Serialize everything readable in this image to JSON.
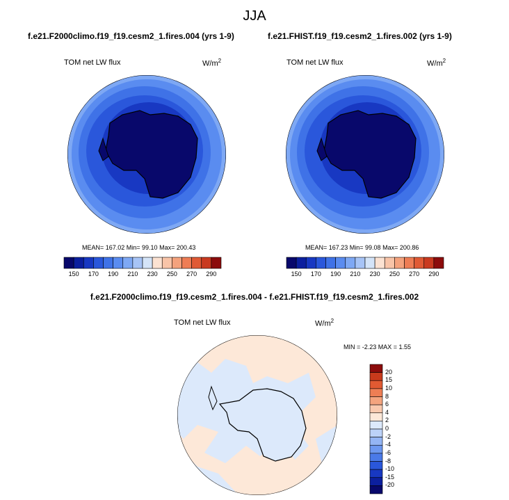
{
  "chart_data": [
    {
      "type": "heatmap",
      "title": "JJA",
      "subtitle": "f.e21.F2000climo.f19_f19.cesm2_1.fires.004 (yrs 1-9)",
      "variable_label": "TOM net LW flux",
      "units_label": "W/m",
      "units_superscript": "2",
      "stats_text": "MEAN= 167.02 Min= 99.10 Max= 200.43",
      "stats": {
        "mean": 167.02,
        "min": 99.1,
        "max": 200.43
      },
      "colorbar_levels": [
        140,
        150,
        160,
        170,
        180,
        190,
        200,
        210,
        220,
        230,
        240,
        250,
        260,
        270,
        280,
        290,
        300
      ],
      "colorbar_tick_labels": [
        "150",
        "170",
        "190",
        "210",
        "230",
        "250",
        "270",
        "290"
      ],
      "colorbar_colors": [
        "#08086b",
        "#0c1f9e",
        "#1838c2",
        "#2a57db",
        "#3f72e7",
        "#5a8cf0",
        "#7ea8f4",
        "#a7c4f6",
        "#d4e4f8",
        "#fbe2d2",
        "#f8c4a8",
        "#f4a27d",
        "#ee7d55",
        "#e05a35",
        "#c93a20",
        "#8c0c0c"
      ]
    },
    {
      "type": "heatmap",
      "subtitle": "f.e21.FHIST.f19_f19.cesm2_1.fires.002 (yrs 1-9)",
      "variable_label": "TOM net LW flux",
      "units_label": "W/m",
      "units_superscript": "2",
      "stats_text": "MEAN= 167.23 Min= 99.08 Max= 200.86",
      "stats": {
        "mean": 167.23,
        "min": 99.08,
        "max": 200.86
      },
      "colorbar_tick_labels": [
        "150",
        "170",
        "190",
        "210",
        "230",
        "250",
        "270",
        "290"
      ]
    },
    {
      "type": "heatmap",
      "subtitle": "f.e21.F2000climo.f19_f19.cesm2_1.fires.004 - f.e21.FHIST.f19_f19.cesm2_1.fires.002",
      "variable_label": "TOM net LW flux",
      "units_label": "W/m",
      "units_superscript": "2",
      "stats_text": "MIN =  -2.23 MAX =   1.55",
      "stats": {
        "min": -2.23,
        "max": 1.55
      },
      "colorbar_tick_labels": [
        "20",
        "15",
        "10",
        "8",
        "6",
        "4",
        "2",
        "0",
        "-2",
        "-4",
        "-6",
        "-8",
        "-10",
        "-15",
        "-20"
      ],
      "colorbar_colors": [
        "#08086b",
        "#0c1f9e",
        "#1838c2",
        "#2a57db",
        "#4a7ae8",
        "#6d98f0",
        "#94b5f4",
        "#bcd2f8",
        "#dce9fb",
        "#fde8d8",
        "#f9c9ae",
        "#f4a47e",
        "#ee7e54",
        "#e15a32",
        "#c83a1c",
        "#8c0c0c"
      ]
    }
  ]
}
